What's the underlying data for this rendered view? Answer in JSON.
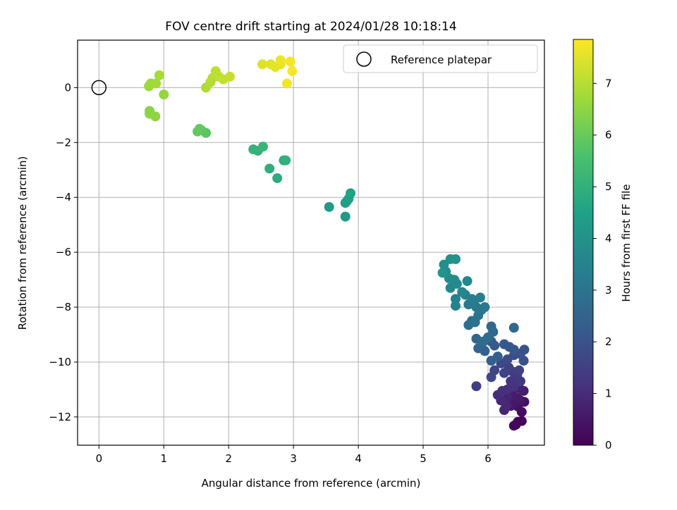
{
  "chart_data": {
    "type": "scatter",
    "title": "FOV centre drift starting at 2024/01/28 10:18:14",
    "xlabel": "Angular distance from reference (arcmin)",
    "ylabel": "Rotation from reference (arcmin)",
    "xlim": [
      -0.33,
      6.87
    ],
    "ylim": [
      -13.03,
      1.73
    ],
    "xticks": [
      0,
      1,
      2,
      3,
      4,
      5,
      6
    ],
    "yticks": [
      0,
      -2,
      -4,
      -6,
      -8,
      -10,
      -12
    ],
    "xtick_labels": [
      "0",
      "1",
      "2",
      "3",
      "4",
      "5",
      "6"
    ],
    "ytick_labels": [
      "0",
      "−2",
      "−4",
      "−6",
      "−8",
      "−10",
      "−12"
    ],
    "grid": true,
    "legend": {
      "placement": "top-right",
      "entries": [
        "Reference platepar"
      ]
    },
    "colorbar": {
      "label": "Hours from first FF file",
      "colormap": "viridis",
      "range": [
        0,
        7.85
      ],
      "ticks": [
        0,
        1,
        2,
        3,
        4,
        5,
        6,
        7
      ],
      "tick_labels": [
        "0",
        "1",
        "2",
        "3",
        "4",
        "5",
        "6",
        "7"
      ]
    },
    "reference_point": {
      "x": 0,
      "y": 0
    },
    "points": [
      {
        "x": 6.43,
        "y": -12.28,
        "h": 0.02
      },
      {
        "x": 6.46,
        "y": -12.18,
        "h": 0.08
      },
      {
        "x": 6.52,
        "y": -12.15,
        "h": 0.12
      },
      {
        "x": 6.4,
        "y": -12.32,
        "h": 0.15
      },
      {
        "x": 6.52,
        "y": -11.82,
        "h": 0.25
      },
      {
        "x": 6.56,
        "y": -11.45,
        "h": 0.35
      },
      {
        "x": 6.46,
        "y": -11.62,
        "h": 0.4
      },
      {
        "x": 6.4,
        "y": -11.5,
        "h": 0.45
      },
      {
        "x": 6.5,
        "y": -11.4,
        "h": 0.5
      },
      {
        "x": 6.35,
        "y": -11.6,
        "h": 0.55
      },
      {
        "x": 6.45,
        "y": -11.3,
        "h": 0.6
      },
      {
        "x": 6.38,
        "y": -11.2,
        "h": 0.65
      },
      {
        "x": 6.55,
        "y": -11.05,
        "h": 0.7
      },
      {
        "x": 6.48,
        "y": -10.95,
        "h": 0.75
      },
      {
        "x": 6.3,
        "y": -11.3,
        "h": 0.8
      },
      {
        "x": 6.25,
        "y": -11.75,
        "h": 0.85
      },
      {
        "x": 6.28,
        "y": -11.6,
        "h": 0.9
      },
      {
        "x": 6.2,
        "y": -11.4,
        "h": 0.95
      },
      {
        "x": 6.15,
        "y": -11.2,
        "h": 1.0
      },
      {
        "x": 6.22,
        "y": -11.05,
        "h": 1.05
      },
      {
        "x": 6.3,
        "y": -11.0,
        "h": 1.1
      },
      {
        "x": 6.4,
        "y": -10.9,
        "h": 1.15
      },
      {
        "x": 6.35,
        "y": -10.7,
        "h": 1.2
      },
      {
        "x": 6.42,
        "y": -10.55,
        "h": 1.25
      },
      {
        "x": 6.5,
        "y": -10.7,
        "h": 1.3
      },
      {
        "x": 6.45,
        "y": -10.45,
        "h": 1.35
      },
      {
        "x": 6.38,
        "y": -10.35,
        "h": 1.4
      },
      {
        "x": 5.82,
        "y": -10.88,
        "h": 1.45
      },
      {
        "x": 6.32,
        "y": -10.2,
        "h": 1.5
      },
      {
        "x": 6.48,
        "y": -10.3,
        "h": 1.55
      },
      {
        "x": 6.25,
        "y": -10.4,
        "h": 1.6
      },
      {
        "x": 6.1,
        "y": -10.3,
        "h": 1.65
      },
      {
        "x": 6.05,
        "y": -10.55,
        "h": 1.7
      },
      {
        "x": 6.2,
        "y": -10.05,
        "h": 1.75
      },
      {
        "x": 6.3,
        "y": -9.9,
        "h": 1.8
      },
      {
        "x": 6.4,
        "y": -9.75,
        "h": 1.85
      },
      {
        "x": 6.55,
        "y": -9.95,
        "h": 1.9
      },
      {
        "x": 6.5,
        "y": -9.7,
        "h": 1.95
      },
      {
        "x": 6.56,
        "y": -9.55,
        "h": 2.0
      },
      {
        "x": 6.4,
        "y": -9.55,
        "h": 2.05
      },
      {
        "x": 6.33,
        "y": -9.45,
        "h": 2.1
      },
      {
        "x": 6.25,
        "y": -9.35,
        "h": 2.15
      },
      {
        "x": 6.1,
        "y": -9.4,
        "h": 2.2
      },
      {
        "x": 6.05,
        "y": -9.25,
        "h": 2.25
      },
      {
        "x": 6.15,
        "y": -9.8,
        "h": 2.3
      },
      {
        "x": 6.05,
        "y": -9.95,
        "h": 2.35
      },
      {
        "x": 5.95,
        "y": -9.6,
        "h": 2.4
      },
      {
        "x": 5.9,
        "y": -9.45,
        "h": 2.45
      },
      {
        "x": 5.85,
        "y": -9.5,
        "h": 2.5
      },
      {
        "x": 5.82,
        "y": -9.15,
        "h": 2.55
      },
      {
        "x": 6.4,
        "y": -8.75,
        "h": 2.6
      },
      {
        "x": 6.05,
        "y": -8.7,
        "h": 2.65
      },
      {
        "x": 6.08,
        "y": -8.9,
        "h": 2.7
      },
      {
        "x": 6.0,
        "y": -9.1,
        "h": 2.75
      },
      {
        "x": 5.93,
        "y": -9.25,
        "h": 2.8
      },
      {
        "x": 5.75,
        "y": -8.5,
        "h": 2.85
      },
      {
        "x": 5.7,
        "y": -8.65,
        "h": 2.9
      },
      {
        "x": 5.8,
        "y": -8.55,
        "h": 2.95
      },
      {
        "x": 5.85,
        "y": -8.3,
        "h": 3.0
      },
      {
        "x": 5.9,
        "y": -8.1,
        "h": 3.05
      },
      {
        "x": 5.82,
        "y": -8.0,
        "h": 3.1
      },
      {
        "x": 5.95,
        "y": -8.0,
        "h": 3.15
      },
      {
        "x": 5.78,
        "y": -7.8,
        "h": 3.2
      },
      {
        "x": 5.7,
        "y": -7.9,
        "h": 3.25
      },
      {
        "x": 5.75,
        "y": -7.7,
        "h": 3.3
      },
      {
        "x": 5.88,
        "y": -7.65,
        "h": 3.35
      },
      {
        "x": 5.65,
        "y": -7.55,
        "h": 3.4
      },
      {
        "x": 5.5,
        "y": -7.7,
        "h": 3.45
      },
      {
        "x": 5.5,
        "y": -7.95,
        "h": 3.5
      },
      {
        "x": 5.6,
        "y": -7.45,
        "h": 3.55
      },
      {
        "x": 5.68,
        "y": -7.05,
        "h": 3.6
      },
      {
        "x": 5.52,
        "y": -7.15,
        "h": 3.65
      },
      {
        "x": 5.42,
        "y": -7.3,
        "h": 3.7
      },
      {
        "x": 5.48,
        "y": -7.0,
        "h": 3.75
      },
      {
        "x": 5.4,
        "y": -6.95,
        "h": 3.8
      },
      {
        "x": 5.35,
        "y": -6.7,
        "h": 3.85
      },
      {
        "x": 5.32,
        "y": -6.45,
        "h": 3.9
      },
      {
        "x": 5.42,
        "y": -6.25,
        "h": 3.95
      },
      {
        "x": 5.5,
        "y": -6.25,
        "h": 4.0
      },
      {
        "x": 5.3,
        "y": -6.75,
        "h": 4.05
      },
      {
        "x": 3.55,
        "y": -4.35,
        "h": 4.25
      },
      {
        "x": 3.8,
        "y": -4.7,
        "h": 4.3
      },
      {
        "x": 3.8,
        "y": -4.2,
        "h": 4.35
      },
      {
        "x": 3.82,
        "y": -4.15,
        "h": 4.4
      },
      {
        "x": 3.85,
        "y": -4.05,
        "h": 4.45
      },
      {
        "x": 3.88,
        "y": -3.85,
        "h": 4.5
      },
      {
        "x": 2.75,
        "y": -3.3,
        "h": 4.85
      },
      {
        "x": 2.63,
        "y": -2.95,
        "h": 4.9
      },
      {
        "x": 2.85,
        "y": -2.65,
        "h": 4.95
      },
      {
        "x": 2.88,
        "y": -2.65,
        "h": 5.0
      },
      {
        "x": 2.45,
        "y": -2.3,
        "h": 5.05
      },
      {
        "x": 2.38,
        "y": -2.25,
        "h": 5.1
      },
      {
        "x": 2.53,
        "y": -2.15,
        "h": 5.15
      },
      {
        "x": 1.65,
        "y": -1.65,
        "h": 5.8
      },
      {
        "x": 1.58,
        "y": -1.55,
        "h": 5.85
      },
      {
        "x": 1.52,
        "y": -1.6,
        "h": 5.9
      },
      {
        "x": 1.55,
        "y": -1.5,
        "h": 5.95
      },
      {
        "x": 0.78,
        "y": -0.85,
        "h": 6.4
      },
      {
        "x": 0.78,
        "y": -0.95,
        "h": 6.45
      },
      {
        "x": 0.87,
        "y": -1.05,
        "h": 6.5
      },
      {
        "x": 1.0,
        "y": -0.25,
        "h": 6.6
      },
      {
        "x": 0.77,
        "y": 0.05,
        "h": 6.65
      },
      {
        "x": 0.8,
        "y": 0.15,
        "h": 6.7
      },
      {
        "x": 0.88,
        "y": 0.15,
        "h": 6.75
      },
      {
        "x": 0.93,
        "y": 0.45,
        "h": 6.8
      },
      {
        "x": 1.65,
        "y": 0.0,
        "h": 6.9
      },
      {
        "x": 1.72,
        "y": 0.2,
        "h": 6.95
      },
      {
        "x": 1.75,
        "y": 0.35,
        "h": 7.0
      },
      {
        "x": 1.8,
        "y": 0.6,
        "h": 7.05
      },
      {
        "x": 1.85,
        "y": 0.4,
        "h": 7.1
      },
      {
        "x": 1.92,
        "y": 0.3,
        "h": 7.15
      },
      {
        "x": 2.02,
        "y": 0.4,
        "h": 7.2
      },
      {
        "x": 2.52,
        "y": 0.85,
        "h": 7.45
      },
      {
        "x": 2.65,
        "y": 0.85,
        "h": 7.5
      },
      {
        "x": 2.72,
        "y": 0.75,
        "h": 7.55
      },
      {
        "x": 2.8,
        "y": 0.85,
        "h": 7.6
      },
      {
        "x": 2.8,
        "y": 1.0,
        "h": 7.65
      },
      {
        "x": 2.9,
        "y": 0.15,
        "h": 7.7
      },
      {
        "x": 2.95,
        "y": 0.95,
        "h": 7.75
      },
      {
        "x": 2.98,
        "y": 0.6,
        "h": 7.8
      }
    ]
  }
}
